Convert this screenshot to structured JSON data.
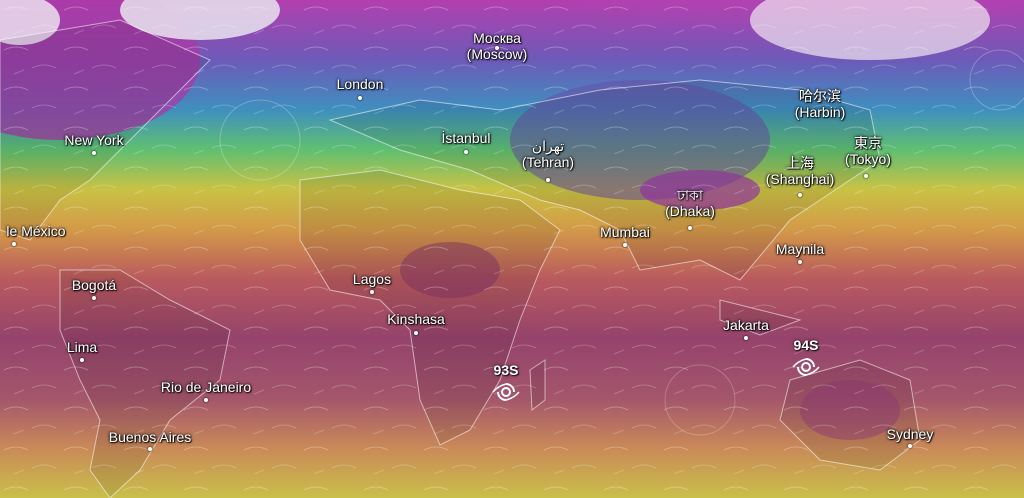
{
  "cities": [
    {
      "id": "moscow",
      "name": "Москва",
      "translit": "(Moscow)"
    },
    {
      "id": "london",
      "name": "London",
      "translit": ""
    },
    {
      "id": "istanbul",
      "name": "İstanbul",
      "translit": ""
    },
    {
      "id": "tehran",
      "name": "تهران",
      "translit": "(Tehran)"
    },
    {
      "id": "harbin",
      "name": "哈尔滨",
      "translit": "(Harbin)"
    },
    {
      "id": "tokyo",
      "name": "東京",
      "translit": "(Tokyo)"
    },
    {
      "id": "shanghai",
      "name": "上海",
      "translit": "(Shanghai)"
    },
    {
      "id": "dhaka",
      "name": "ঢাকা",
      "translit": "(Dhaka)"
    },
    {
      "id": "new-york",
      "name": "New York",
      "translit": ""
    },
    {
      "id": "mexico",
      "name": "le México",
      "translit": ""
    },
    {
      "id": "mumbai",
      "name": "Mumbai",
      "translit": ""
    },
    {
      "id": "maynila",
      "name": "Maynila",
      "translit": ""
    },
    {
      "id": "lagos",
      "name": "Lagos",
      "translit": ""
    },
    {
      "id": "bogota",
      "name": "Bogotá",
      "translit": ""
    },
    {
      "id": "kinshasa",
      "name": "Kinshasa",
      "translit": ""
    },
    {
      "id": "jakarta",
      "name": "Jakarta",
      "translit": ""
    },
    {
      "id": "lima",
      "name": "Lima",
      "translit": ""
    },
    {
      "id": "rio",
      "name": "Rio de Janeiro",
      "translit": ""
    },
    {
      "id": "buenos-aires",
      "name": "Buenos Aires",
      "translit": ""
    },
    {
      "id": "sydney",
      "name": "Sydney",
      "translit": ""
    }
  ],
  "storms": [
    {
      "id": "93s",
      "label": "93S",
      "icon": "cyclone-icon"
    },
    {
      "id": "94s",
      "label": "94S",
      "icon": "cyclone-icon"
    }
  ],
  "colors": {
    "hot": "#8a3a6e",
    "warm": "#c46a52",
    "mild": "#d9b640",
    "cool": "#7fc45a",
    "cold": "#4a8fc0",
    "frozen": "#9a3fb4",
    "snow": "#f2eef4"
  }
}
